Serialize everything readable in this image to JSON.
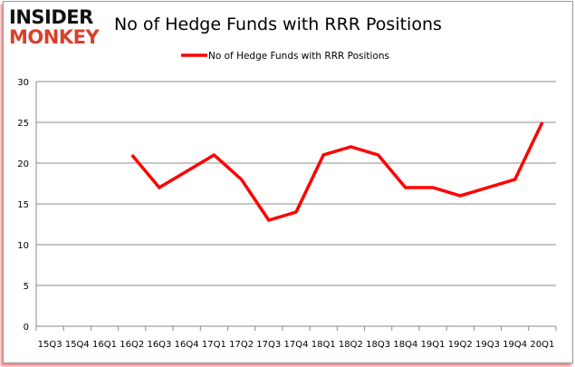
{
  "logo": {
    "line1": "INSIDER",
    "line2": "MONKEY"
  },
  "chart_data": {
    "type": "line",
    "title": "No of Hedge Funds with RRR Positions",
    "categories": [
      "15Q3",
      "15Q4",
      "16Q1",
      "16Q2",
      "16Q3",
      "16Q4",
      "17Q1",
      "17Q2",
      "17Q3",
      "17Q4",
      "18Q1",
      "18Q2",
      "18Q3",
      "18Q4",
      "19Q1",
      "19Q2",
      "19Q3",
      "19Q4",
      "20Q1"
    ],
    "series": [
      {
        "name": "No of Hedge Funds with RRR Positions",
        "color": "#ff0000",
        "values": [
          null,
          null,
          null,
          21,
          17,
          19,
          21,
          18,
          13,
          14,
          21,
          22,
          21,
          17,
          17,
          16,
          17,
          18,
          25
        ]
      }
    ],
    "ylim": [
      0,
      30
    ],
    "yticks": [
      0,
      5,
      10,
      15,
      20,
      25,
      30
    ],
    "grid": true,
    "legend_position": "top-center",
    "xlabel": "",
    "ylabel": ""
  }
}
